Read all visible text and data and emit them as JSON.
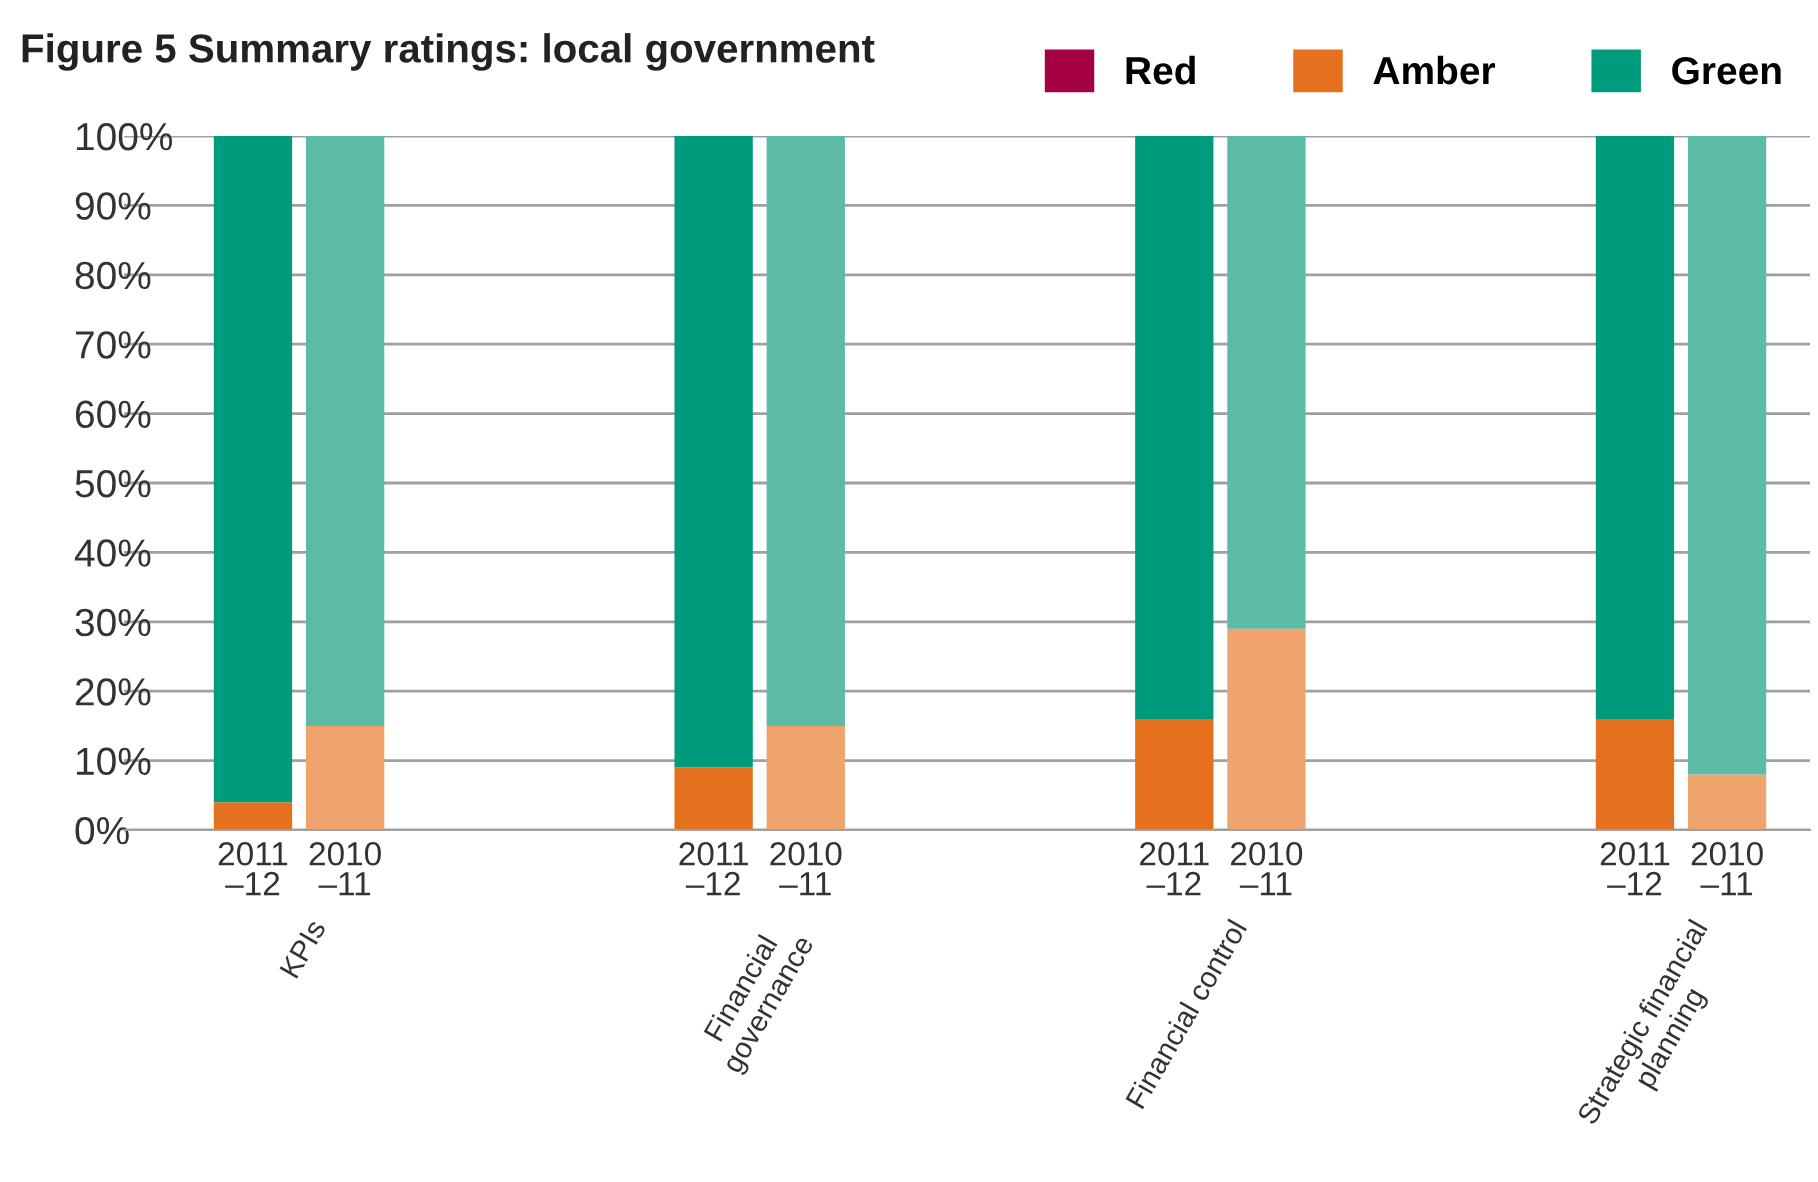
{
  "chart_data": {
    "type": "bar",
    "title": "Figure 5 Summary ratings: local government",
    "stacked": true,
    "categories": [
      "2011\n–12",
      "2010\n–11",
      null,
      null,
      null,
      "2011\n–12",
      "2010\n–11",
      null,
      null,
      null,
      "2011\n–12",
      "2010\n–11",
      null,
      null,
      null,
      "2011\n–12",
      "2010\n–11"
    ],
    "annotations": [
      "KPIs",
      "Financial\ngovernance",
      "Financial control",
      "Strategic financial\nplanning"
    ],
    "series": [
      {
        "name": "Red",
        "color": "#a50044",
        "values": [
          0,
          0,
          null,
          null,
          null,
          0,
          0,
          null,
          null,
          null,
          0,
          0,
          null,
          null,
          null,
          0,
          0
        ]
      },
      {
        "name": "Amber",
        "color": "#e5711f",
        "colors": [
          "#e5711f",
          "#efa46e",
          null,
          null,
          null,
          "#e5711f",
          "#efa46e",
          null,
          null,
          null,
          "#e5711f",
          "#efa46e",
          null,
          null,
          null,
          "#e5711f",
          "#efa46e"
        ],
        "values": [
          4,
          15,
          null,
          null,
          null,
          9,
          15,
          null,
          null,
          null,
          16,
          29,
          null,
          null,
          null,
          16,
          8
        ]
      },
      {
        "name": "Green",
        "color": "#009b7c",
        "colors": [
          "#009b7c",
          "#5bbba6",
          null,
          null,
          null,
          "#009b7c",
          "#5bbba6",
          null,
          null,
          null,
          "#009b7c",
          "#5bbba6",
          null,
          null,
          null,
          "#009b7c",
          "#5bbba6"
        ],
        "values": [
          96,
          85,
          null,
          null,
          null,
          91,
          85,
          null,
          null,
          null,
          84,
          71,
          null,
          null,
          null,
          84,
          92
        ]
      }
    ],
    "ylim": [
      0,
      100
    ],
    "yticks": [
      {
        "value": 0,
        "label": "0%"
      },
      {
        "value": 10,
        "label": "10%"
      },
      {
        "value": 20,
        "label": "20%"
      },
      {
        "value": 30,
        "label": "30%"
      },
      {
        "value": 40,
        "label": "40%"
      },
      {
        "value": 50,
        "label": "50%"
      },
      {
        "value": 60,
        "label": "60%"
      },
      {
        "value": 70,
        "label": "70%"
      },
      {
        "value": 80,
        "label": "80%"
      },
      {
        "value": 90,
        "label": "90%"
      },
      {
        "value": 100,
        "label": "100%"
      }
    ],
    "grid": "y",
    "legend": "top right"
  }
}
